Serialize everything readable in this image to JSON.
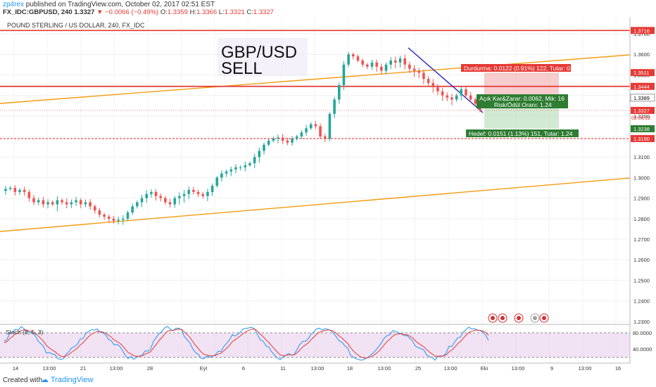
{
  "header": {
    "user": "zp4rex",
    "published": "published on TradingView.com, October 02, 2017 02:51 EST",
    "symbol": "FX_IDC:GBPUSD, 240",
    "last": "1.3327",
    "change": "▼ −0.0066 (−0.49%)",
    "o_label": "O:",
    "o": "1.3359",
    "h_label": "H:",
    "h": "1.3366",
    "l_label": "L:",
    "l": "1.3321",
    "c_label": "C:",
    "c": "1.3327"
  },
  "legend": {
    "instrument": "POUND STERLING / US DOLLAR, 240, FX_IDC",
    "title_line1": "GBP/USD",
    "title_line2": "SELL"
  },
  "position": {
    "stop_label": "Durdurma: 0.0122 (0.91%) 122, Tutar: 0.8",
    "open_label_1": "Açık Kar&Zarar: 0.0062, Mik: 16",
    "open_label_2": "Risk/Ödül Oranı: 1.24",
    "target_label": "Hedef: 0.0151 (1.13%) 151, Tutar: 1.24"
  },
  "price_axis": {
    "ticks": [
      "1.3700",
      "1.3600",
      "1.3500",
      "1.3400",
      "1.3300",
      "1.3200",
      "1.3100",
      "1.3000",
      "1.2900",
      "1.2800",
      "1.2700",
      "1.2600",
      "1.2500",
      "1.2400",
      "1.2300"
    ],
    "markers": [
      {
        "label": "1.3716",
        "color": "#e53935",
        "price": 1.3716
      },
      {
        "label": "1.3511",
        "color": "#e53935",
        "price": 1.3511
      },
      {
        "label": "1.3444",
        "color": "#e53935",
        "price": 1.3444
      },
      {
        "label": "1.3389",
        "color": "#ffffff",
        "text_color": "#000000",
        "price": 1.3389
      },
      {
        "label": "1.3327",
        "color": "#e53935",
        "price": 1.3327
      },
      {
        "label": "1.3238",
        "color": "#2e7d32",
        "price": 1.3238
      },
      {
        "label": "1.3190",
        "color": "#e53935",
        "price": 1.319
      }
    ],
    "countdown": "02:08:22"
  },
  "time_axis": {
    "labels": [
      "14",
      "13:00",
      "21",
      "13:00",
      "28",
      "Eyl",
      "6",
      "11",
      "13:00",
      "18",
      "13:00",
      "25",
      "13:00",
      "Eki",
      "13:00",
      "9",
      "13:00",
      "16"
    ]
  },
  "stoch": {
    "title": "Stoch (8, 5, 3)",
    "levels": [
      "80.0000",
      "40.0000"
    ]
  },
  "footer": {
    "created_with": "Created with",
    "brand": "TradingView"
  },
  "chart_data": {
    "type": "candlestick",
    "instrument": "POUND STERLING / US DOLLAR, 240, FX_IDC",
    "ylim": [
      1.23,
      1.3716
    ],
    "close_path": [
      1.2945,
      1.295,
      1.293,
      1.294,
      1.293,
      1.29,
      1.288,
      1.289,
      1.287,
      1.288,
      1.287,
      1.289,
      1.288,
      1.287,
      1.288,
      1.289,
      1.287,
      1.288,
      1.286,
      1.284,
      1.282,
      1.281,
      1.28,
      1.279,
      1.2795,
      1.28,
      1.283,
      1.286,
      1.288,
      1.29,
      1.292,
      1.293,
      1.291,
      1.29,
      1.288,
      1.287,
      1.29,
      1.291,
      1.292,
      1.294,
      1.293,
      1.292,
      1.291,
      1.293,
      1.296,
      1.3,
      1.302,
      1.303,
      1.304,
      1.305,
      1.305,
      1.306,
      1.307,
      1.31,
      1.313,
      1.316,
      1.318,
      1.319,
      1.3195,
      1.318,
      1.317,
      1.319,
      1.32,
      1.322,
      1.324,
      1.326,
      1.325,
      1.32,
      1.319,
      1.331,
      1.338,
      1.345,
      1.355,
      1.36,
      1.359,
      1.357,
      1.355,
      1.354,
      1.356,
      1.354,
      1.352,
      1.355,
      1.357,
      1.356,
      1.358,
      1.355,
      1.353,
      1.352,
      1.351,
      1.348,
      1.346,
      1.344,
      1.342,
      1.34,
      1.339,
      1.338,
      1.34,
      1.343,
      1.34,
      1.338,
      1.336,
      1.3327
    ],
    "horizontal_lines": [
      1.3716,
      1.3444,
      1.319
    ],
    "position": {
      "side": "short",
      "entry": 1.3389,
      "stop": 1.3511,
      "target": 1.3238
    }
  }
}
